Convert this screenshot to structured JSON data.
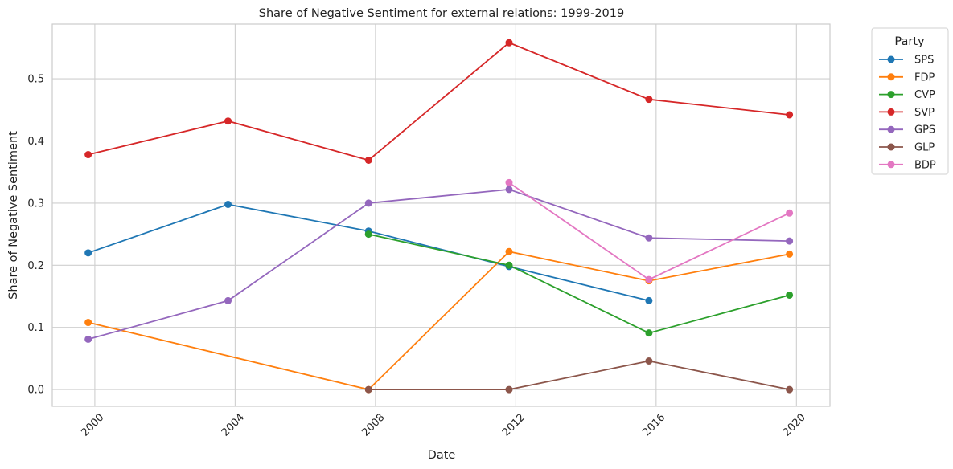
{
  "chart_data": {
    "type": "line",
    "title": "Share of Negative Sentiment for external relations: 1999-2019",
    "xlabel": "Date",
    "ylabel": "Share of Negative Sentiment",
    "x_ticks": [
      "2000",
      "2004",
      "2008",
      "2012",
      "2016",
      "2020"
    ],
    "y_ticks": [
      "0.0",
      "0.1",
      "0.2",
      "0.3",
      "0.4",
      "0.5"
    ],
    "xlim": [
      "1998-10-15",
      "2020-12-15"
    ],
    "ylim": [
      -0.027,
      0.588
    ],
    "grid": true,
    "legend_title": "Party",
    "legend_position": "outside-top-right",
    "series": [
      {
        "name": "SPS",
        "color": "#1f77b4",
        "points": [
          [
            "1999-10-24",
            0.22
          ],
          [
            "2003-10-19",
            0.298
          ],
          [
            "2007-10-21",
            0.255
          ],
          [
            "2011-10-23",
            0.198
          ],
          [
            "2015-10-18",
            0.143
          ]
        ]
      },
      {
        "name": "FDP",
        "color": "#ff7f0e",
        "points": [
          [
            "1999-10-24",
            0.108
          ],
          [
            "2007-10-21",
            0.0
          ],
          [
            "2011-10-23",
            0.222
          ],
          [
            "2015-10-18",
            0.175
          ],
          [
            "2019-10-20",
            0.218
          ]
        ]
      },
      {
        "name": "CVP",
        "color": "#2ca02c",
        "points": [
          [
            "2007-10-21",
            0.25
          ],
          [
            "2011-10-23",
            0.2
          ],
          [
            "2015-10-18",
            0.091
          ],
          [
            "2019-10-20",
            0.152
          ]
        ]
      },
      {
        "name": "SVP",
        "color": "#d62728",
        "points": [
          [
            "1999-10-24",
            0.378
          ],
          [
            "2003-10-19",
            0.432
          ],
          [
            "2007-10-21",
            0.369
          ],
          [
            "2011-10-23",
            0.558
          ],
          [
            "2015-10-18",
            0.467
          ],
          [
            "2019-10-20",
            0.442
          ]
        ]
      },
      {
        "name": "GPS",
        "color": "#9467bd",
        "points": [
          [
            "1999-10-24",
            0.081
          ],
          [
            "2003-10-19",
            0.143
          ],
          [
            "2007-10-21",
            0.3
          ],
          [
            "2011-10-23",
            0.322
          ],
          [
            "2015-10-18",
            0.244
          ],
          [
            "2019-10-20",
            0.239
          ]
        ]
      },
      {
        "name": "GLP",
        "color": "#8c564b",
        "points": [
          [
            "2007-10-21",
            0.0
          ],
          [
            "2011-10-23",
            0.0
          ],
          [
            "2015-10-18",
            0.046
          ],
          [
            "2019-10-20",
            0.0
          ]
        ]
      },
      {
        "name": "BDP",
        "color": "#e377c2",
        "points": [
          [
            "2011-10-23",
            0.333
          ],
          [
            "2015-10-18",
            0.177
          ],
          [
            "2019-10-20",
            0.284
          ]
        ]
      }
    ]
  }
}
